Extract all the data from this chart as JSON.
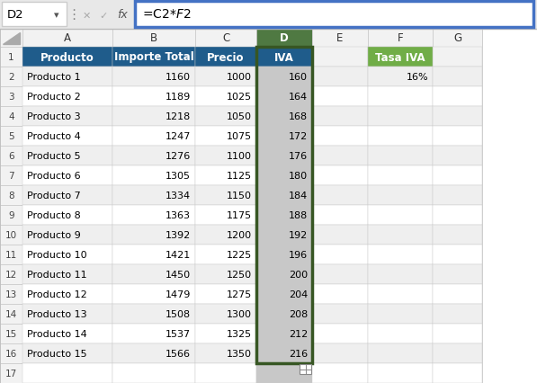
{
  "formula_bar_cell": "D2",
  "formula_bar_formula": "=C2*$F$2",
  "headers": [
    "Producto",
    "Importe Total",
    "Precio",
    "IVA"
  ],
  "col_letters": [
    "A",
    "B",
    "C",
    "D",
    "E",
    "F",
    "G"
  ],
  "productos": [
    "Producto 1",
    "Producto 2",
    "Producto 3",
    "Producto 4",
    "Producto 5",
    "Producto 6",
    "Producto 7",
    "Producto 8",
    "Producto 9",
    "Producto 10",
    "Producto 11",
    "Producto 12",
    "Producto 13",
    "Producto 14",
    "Producto 15"
  ],
  "importe_total": [
    1160,
    1189,
    1218,
    1247,
    1276,
    1305,
    1334,
    1363,
    1392,
    1421,
    1450,
    1479,
    1508,
    1537,
    1566
  ],
  "precio": [
    1000,
    1025,
    1050,
    1075,
    1100,
    1125,
    1150,
    1175,
    1200,
    1225,
    1250,
    1275,
    1300,
    1325,
    1350
  ],
  "iva": [
    160,
    164,
    168,
    172,
    176,
    180,
    184,
    188,
    192,
    196,
    200,
    204,
    208,
    212,
    216
  ],
  "tasa_iva_label": "Tasa IVA",
  "tasa_iva_value": "16%",
  "header_bg_color": "#1F5C8B",
  "header_text_color": "#FFFFFF",
  "tasa_iva_bg_color": "#70AD47",
  "tasa_iva_text_color": "#FFFFFF",
  "d_col_bg": "#C8C8C8",
  "d_col_header_bg": "#375623",
  "d_col_header_text": "#FFFFFF",
  "row_colors": [
    "#FFFFFF",
    "#EFEFEF"
  ],
  "grid_color": "#C8C8C8",
  "highlight_border_color": "#375623",
  "row_num_bg": "#F2F2F2",
  "col_header_bg": "#F2F2F2",
  "col_header_selected_bg": "#4F7942",
  "formula_bar_bg": "#E8E8E8",
  "formula_box_border": "#4472C4",
  "cell_name_box_bg": "#FFFFFF",
  "formula_input_bg": "#FFFFFF"
}
